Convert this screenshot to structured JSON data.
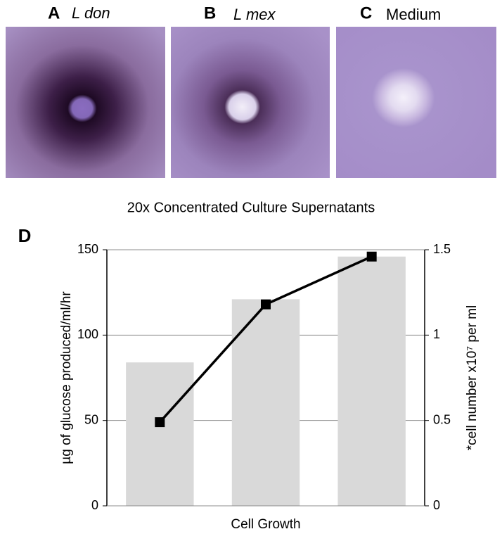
{
  "panels": [
    {
      "letter": "A",
      "label": "L don"
    },
    {
      "letter": "B",
      "label": "L mex"
    },
    {
      "letter": "C",
      "label": "Medium"
    }
  ],
  "caption": "20x Concentrated Culture Supernatants",
  "chart_data": {
    "type": "bar",
    "panel_label": "D",
    "xlabel": "Cell Growth",
    "ylabel": "µg of glucose produced/ml/hr",
    "y2label": "*cell number x10⁷ per ml",
    "categories": [
      null,
      null,
      null
    ],
    "series": [
      {
        "type": "bar",
        "color": "#d9d9d9",
        "values": [
          84,
          121,
          146
        ]
      },
      {
        "type": "line",
        "axis": "y2",
        "color": "#000000",
        "values": [
          0.49,
          1.18,
          1.46
        ]
      }
    ],
    "ylim": [
      0,
      150
    ],
    "yticks": [
      0,
      50,
      100,
      150
    ],
    "y2lim": [
      0,
      1.5
    ],
    "y2ticks": [
      0,
      0.5,
      1,
      1.5
    ],
    "grid": true
  }
}
